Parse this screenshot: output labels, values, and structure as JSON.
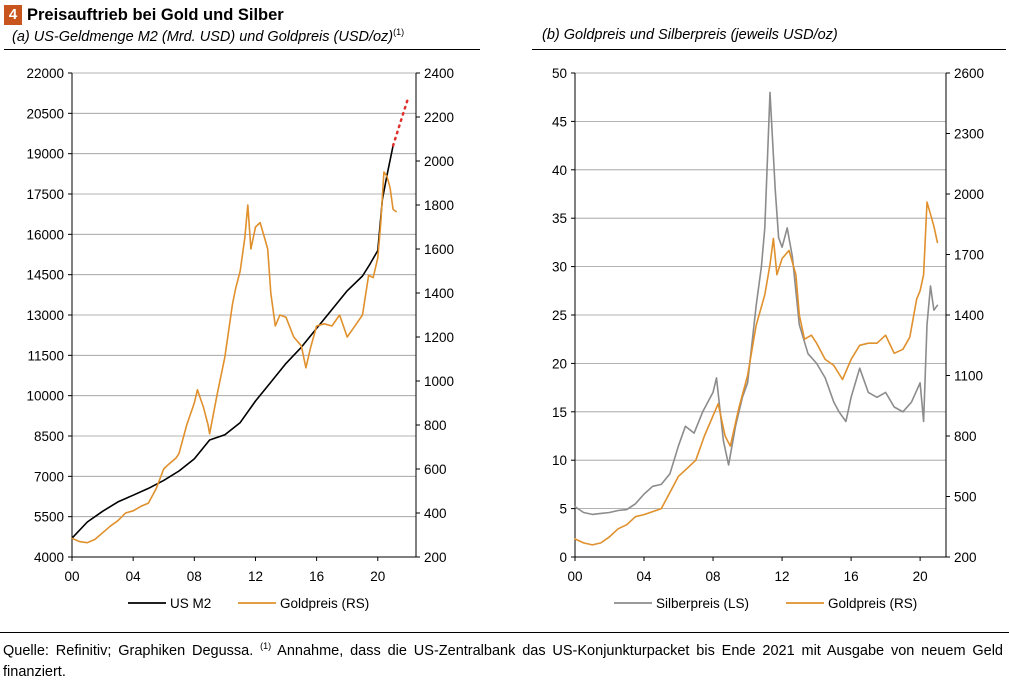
{
  "figure": {
    "number": "4",
    "title": "Preisauftrieb bei Gold und Silber",
    "footnote_source": "Quelle: Refinitiv; Graphiken Degussa.",
    "footnote_marker": "(1)",
    "footnote_text": "Annahme, dass die US-Zentralbank das US-Konjunkturpacket bis Ende 2021 mit Ausgabe von neuem Geld finanziert."
  },
  "colors": {
    "gold": "#e0902c",
    "m2": "#000000",
    "silver": "#8c8c8c",
    "projection": "#e0302c",
    "grid": "#9a9a9a"
  },
  "chart_data": [
    {
      "type": "line",
      "subtitle": "(a) US-Geldmenge M2 (Mrd. USD) und Goldpreis (USD/oz)",
      "subtitle_marker": "(1)",
      "x_ticks": [
        0,
        4,
        8,
        12,
        16,
        20
      ],
      "x_tick_labels": [
        "00",
        "04",
        "08",
        "12",
        "16",
        "20"
      ],
      "xlim": [
        0,
        22.5
      ],
      "ylim_left": [
        4000,
        22000
      ],
      "ylim_right": [
        200,
        2400
      ],
      "yticks_left": [
        4000,
        5500,
        7000,
        8500,
        10000,
        11500,
        13000,
        14500,
        16000,
        17500,
        19000,
        20500,
        22000
      ],
      "yticks_right": [
        200,
        400,
        600,
        800,
        1000,
        1200,
        1400,
        1600,
        1800,
        2000,
        2200,
        2400
      ],
      "series": [
        {
          "name": "US M2",
          "axis": "left",
          "color": "#000000",
          "x": [
            0,
            1,
            2,
            3,
            4,
            5,
            6,
            7,
            8,
            9,
            10,
            11,
            12,
            13,
            14,
            15,
            16,
            17,
            18,
            19,
            19.5,
            20,
            20.3,
            20.6,
            21
          ],
          "y": [
            4700,
            5300,
            5700,
            6050,
            6300,
            6550,
            6850,
            7200,
            7650,
            8350,
            8550,
            9000,
            9800,
            10500,
            11200,
            11800,
            12500,
            13200,
            13900,
            14450,
            14900,
            15400,
            17300,
            18200,
            19300
          ]
        },
        {
          "name": "Goldpreis (RS)",
          "axis": "right",
          "color": "#e0902c",
          "x": [
            0,
            0.5,
            1,
            1.5,
            2,
            2.5,
            3,
            3.5,
            4,
            4.5,
            5,
            5.5,
            6,
            6.3,
            6.8,
            7,
            7.5,
            8,
            8.2,
            8.6,
            8.9,
            9,
            9.5,
            10,
            10.5,
            10.7,
            11,
            11.3,
            11.5,
            11.7,
            12,
            12.3,
            12.6,
            12.8,
            13,
            13.3,
            13.6,
            14,
            14.5,
            15,
            15.3,
            15.6,
            16,
            16.5,
            17,
            17.5,
            18,
            18.3,
            18.8,
            19,
            19.4,
            19.7,
            20,
            20.2,
            20.4,
            20.6,
            20.8,
            21,
            21.2
          ],
          "y": [
            285,
            270,
            265,
            280,
            310,
            340,
            365,
            400,
            410,
            430,
            445,
            510,
            600,
            620,
            650,
            670,
            800,
            900,
            960,
            880,
            800,
            760,
            940,
            1110,
            1350,
            1420,
            1500,
            1650,
            1800,
            1600,
            1700,
            1720,
            1650,
            1600,
            1400,
            1250,
            1300,
            1290,
            1200,
            1160,
            1060,
            1150,
            1250,
            1260,
            1250,
            1300,
            1200,
            1230,
            1280,
            1300,
            1480,
            1470,
            1560,
            1720,
            1950,
            1930,
            1880,
            1780,
            1770
          ]
        },
        {
          "name": "Projektion",
          "axis": "left",
          "color": "#e0302c",
          "dotted": true,
          "x": [
            21,
            21.5,
            22
          ],
          "y": [
            19300,
            20200,
            21100
          ]
        }
      ],
      "legend": [
        "US M2",
        "Goldpreis (RS)"
      ]
    },
    {
      "type": "line",
      "subtitle": "(b) Goldpreis und Silberpreis (jeweils USD/oz)",
      "x_ticks": [
        0,
        4,
        8,
        12,
        16,
        20
      ],
      "x_tick_labels": [
        "00",
        "04",
        "08",
        "12",
        "16",
        "20"
      ],
      "xlim": [
        0,
        21.5
      ],
      "ylim_left": [
        0,
        50
      ],
      "ylim_right": [
        200,
        2600
      ],
      "yticks_left": [
        0,
        5,
        10,
        15,
        20,
        25,
        30,
        35,
        40,
        45,
        50
      ],
      "yticks_right": [
        200,
        500,
        800,
        1100,
        1400,
        1700,
        2000,
        2300,
        2600
      ],
      "series": [
        {
          "name": "Silberpreis (LS)",
          "axis": "left",
          "color": "#8c8c8c",
          "x": [
            0,
            0.5,
            1,
            1.5,
            2,
            2.5,
            3,
            3.5,
            4,
            4.5,
            5,
            5.5,
            6,
            6.4,
            6.9,
            7.4,
            8,
            8.2,
            8.6,
            8.9,
            9.3,
            9.7,
            10,
            10.5,
            10.8,
            11,
            11.3,
            11.6,
            11.8,
            12,
            12.3,
            12.6,
            13,
            13.5,
            14,
            14.5,
            15,
            15.3,
            15.7,
            16,
            16.5,
            17,
            17.5,
            18,
            18.5,
            19,
            19.5,
            20,
            20.2,
            20.4,
            20.6,
            20.8,
            21
          ],
          "y": [
            5.2,
            4.6,
            4.4,
            4.5,
            4.6,
            4.8,
            4.9,
            5.5,
            6.5,
            7.3,
            7.5,
            8.6,
            11.5,
            13.5,
            12.8,
            15.0,
            17.0,
            18.5,
            12.0,
            9.5,
            13.5,
            16.5,
            18.0,
            26.0,
            30.0,
            34.0,
            48.0,
            38.0,
            33.0,
            32.0,
            34.0,
            31.0,
            24.0,
            21.0,
            20.0,
            18.5,
            16.0,
            15.0,
            14.0,
            16.5,
            19.5,
            17.0,
            16.5,
            17.0,
            15.5,
            15.0,
            16.0,
            18.0,
            14.0,
            24.0,
            28.0,
            25.5,
            26.0
          ]
        },
        {
          "name": "Goldpreis (RS)",
          "axis": "right",
          "color": "#e0902c",
          "x": [
            0,
            0.5,
            1,
            1.5,
            2,
            2.5,
            3,
            3.5,
            4,
            4.5,
            5,
            5.5,
            6,
            6.5,
            7,
            7.5,
            8,
            8.3,
            8.7,
            9,
            9.5,
            10,
            10.5,
            11,
            11.3,
            11.5,
            11.7,
            12,
            12.4,
            12.8,
            13,
            13.3,
            13.7,
            14,
            14.5,
            15,
            15.5,
            16,
            16.5,
            17,
            17.5,
            18,
            18.5,
            19,
            19.4,
            19.8,
            20,
            20.2,
            20.4,
            20.6,
            20.8,
            21
          ],
          "y": [
            290,
            270,
            260,
            270,
            300,
            340,
            360,
            400,
            410,
            425,
            440,
            520,
            600,
            640,
            680,
            800,
            900,
            960,
            800,
            750,
            940,
            1100,
            1350,
            1500,
            1650,
            1780,
            1600,
            1680,
            1720,
            1600,
            1400,
            1280,
            1300,
            1260,
            1180,
            1150,
            1080,
            1180,
            1250,
            1260,
            1260,
            1300,
            1210,
            1230,
            1290,
            1480,
            1520,
            1600,
            1960,
            1900,
            1840,
            1760
          ]
        }
      ],
      "legend": [
        "Silberpreis (LS)",
        "Goldpreis (RS)"
      ]
    }
  ]
}
